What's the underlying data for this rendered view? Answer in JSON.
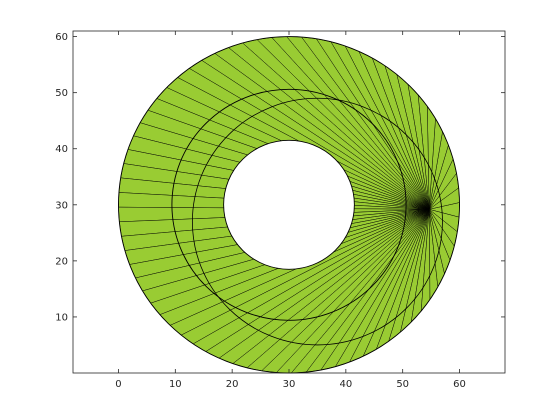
{
  "chart_data": {
    "type": "triangulated-mesh",
    "title": "",
    "xlabel": "",
    "ylabel": "",
    "xlim": [
      -8,
      68
    ],
    "ylim": [
      0,
      61
    ],
    "xticks": [
      0,
      10,
      20,
      30,
      40,
      50,
      60
    ],
    "yticks": [
      10,
      20,
      30,
      40,
      50,
      60
    ],
    "grid": false,
    "legend": "none",
    "fill_color": "#99cc33",
    "edge_color": "#000000",
    "center": [
      30,
      30
    ],
    "inner_radius": 11.5,
    "outer_radius": 30,
    "inner_ring_radius": 20.6,
    "mesh_interface_offset": [
      5,
      -3
    ],
    "mesh_interface_radius": 22
  },
  "axes": {
    "x_tick_labels": [
      "0",
      "10",
      "20",
      "30",
      "40",
      "50",
      "60"
    ],
    "y_tick_labels": [
      "10",
      "20",
      "30",
      "40",
      "50",
      "60"
    ]
  }
}
